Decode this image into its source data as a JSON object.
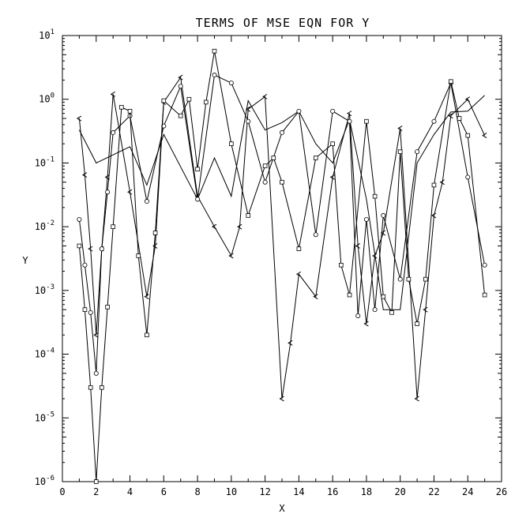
{
  "chart_data": {
    "type": "line",
    "title": "TERMS OF MSE EQN FOR Y",
    "xlabel": "X",
    "ylabel": "Y",
    "xlim": [
      0,
      26
    ],
    "xticks": [
      0,
      2,
      4,
      6,
      8,
      10,
      12,
      14,
      16,
      18,
      20,
      22,
      24,
      26
    ],
    "xtick_labels": [
      "0",
      "2",
      "4",
      "6",
      "8",
      "10",
      "12",
      "14",
      "16",
      "18",
      "20",
      "22",
      "24",
      "26"
    ],
    "yscale": "log",
    "ylim": [
      1e-06,
      10
    ],
    "yticks": [
      1e-06,
      1e-05,
      0.0001,
      0.001,
      0.01,
      0.1,
      1,
      10
    ],
    "ytick_bases": [
      "10",
      "10",
      "10",
      "10",
      "10",
      "10",
      "10",
      "10"
    ],
    "ytick_exps": [
      "-6",
      "-5",
      "-4",
      "-3",
      "-2",
      "-1",
      "0",
      "1"
    ],
    "grid": false,
    "legend": "none",
    "series": [
      {
        "marker": "none",
        "x": [
          1,
          2,
          4,
          5,
          6,
          8,
          9,
          10,
          11,
          12,
          13,
          14,
          15,
          16,
          17,
          18,
          19,
          20,
          21,
          22,
          23,
          24,
          25
        ],
        "y": [
          0.33,
          0.1,
          0.18,
          0.045,
          0.28,
          0.027,
          0.12,
          0.03,
          0.95,
          0.33,
          0.43,
          0.65,
          0.2,
          0.1,
          0.48,
          0.027,
          0.0005,
          0.0005,
          0.1,
          0.28,
          0.63,
          0.65,
          1.15
        ]
      },
      {
        "marker": "chevron",
        "x": [
          1,
          1.33,
          1.67,
          2,
          2.33,
          2.67,
          3,
          4,
          5,
          5.5,
          6,
          7,
          8,
          9,
          10,
          10.5,
          11,
          12,
          13,
          13.5,
          14,
          15,
          16,
          17,
          17.5,
          18,
          18.5,
          19,
          20,
          21,
          21.5,
          22,
          22.5,
          23,
          24,
          25
        ],
        "y": [
          0.5,
          0.065,
          0.0045,
          0.0002,
          0.0045,
          0.06,
          1.2,
          0.035,
          0.0008,
          0.005,
          0.9,
          2.2,
          0.03,
          0.01,
          0.0035,
          0.01,
          0.7,
          1.1,
          2e-05,
          0.00015,
          0.0018,
          0.0008,
          0.06,
          0.6,
          0.005,
          0.0003,
          0.0035,
          0.008,
          0.35,
          2e-05,
          0.0005,
          0.015,
          0.05,
          0.55,
          1.0,
          0.27
        ]
      },
      {
        "marker": "circle",
        "x": [
          1,
          1.33,
          1.67,
          2,
          2.33,
          2.67,
          3,
          4,
          5,
          6,
          7,
          8,
          9,
          10,
          11,
          12,
          13,
          14,
          15,
          16,
          17,
          17.5,
          18,
          18.5,
          19,
          20,
          21,
          22,
          23,
          24,
          25
        ],
        "y": [
          0.013,
          0.0025,
          0.00045,
          5e-05,
          0.0045,
          0.035,
          0.3,
          0.55,
          0.025,
          0.38,
          1.6,
          0.027,
          2.4,
          1.8,
          0.45,
          0.05,
          0.3,
          0.65,
          0.0075,
          0.65,
          0.45,
          0.0004,
          0.013,
          0.0005,
          0.015,
          0.0015,
          0.15,
          0.45,
          1.8,
          0.06,
          0.0025
        ]
      },
      {
        "marker": "square",
        "x": [
          1,
          1.33,
          1.67,
          2,
          2.33,
          2.67,
          3,
          3.5,
          4,
          4.5,
          5,
          5.5,
          6,
          7,
          7.5,
          8,
          8.5,
          9,
          10,
          11,
          12,
          12.5,
          13,
          14,
          15,
          16,
          16.5,
          17,
          18,
          18.5,
          19,
          19.5,
          20,
          20.5,
          21,
          21.5,
          22,
          23,
          23.5,
          24,
          25
        ],
        "y": [
          0.005,
          0.0005,
          3e-05,
          1e-06,
          3e-05,
          0.00055,
          0.01,
          0.75,
          0.65,
          0.0035,
          0.0002,
          0.008,
          0.95,
          0.55,
          1.0,
          0.08,
          0.9,
          5.7,
          0.2,
          0.015,
          0.09,
          0.12,
          0.05,
          0.0045,
          0.12,
          0.2,
          0.0025,
          0.00085,
          0.45,
          0.03,
          0.0008,
          0.00045,
          0.15,
          0.0015,
          0.0003,
          0.0015,
          0.045,
          1.9,
          0.5,
          0.27,
          0.00085
        ]
      }
    ]
  }
}
